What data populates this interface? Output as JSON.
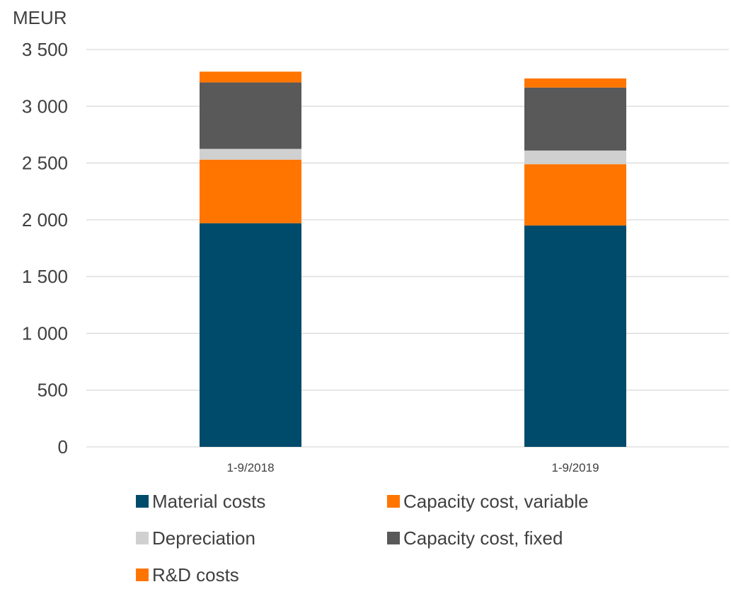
{
  "chart_data": {
    "type": "bar",
    "stacked": true,
    "ylabel": "MEUR",
    "categories": [
      "1-9/2018",
      "1-9/2019"
    ],
    "ylim": [
      0,
      3500
    ],
    "y_ticks": [
      0,
      500,
      1000,
      1500,
      2000,
      2500,
      3000,
      3500
    ],
    "y_tick_labels": [
      "0",
      "500",
      "1 000",
      "1 500",
      "2 000",
      "2 500",
      "3 000",
      "3 500"
    ],
    "grid": true,
    "legend_position": "bottom",
    "series": [
      {
        "name": "Material costs",
        "color": "#004b6b",
        "values": [
          1970,
          1950
        ]
      },
      {
        "name": "Capacity cost, variable",
        "color": "#ff7500",
        "values": [
          560,
          540
        ]
      },
      {
        "name": "Depreciation",
        "color": "#d0d0d0",
        "values": [
          95,
          120
        ]
      },
      {
        "name": "Capacity cost, fixed",
        "color": "#595959",
        "values": [
          585,
          555
        ]
      },
      {
        "name": "R&D costs",
        "color": "#ff7500",
        "values": [
          95,
          80
        ]
      }
    ]
  }
}
